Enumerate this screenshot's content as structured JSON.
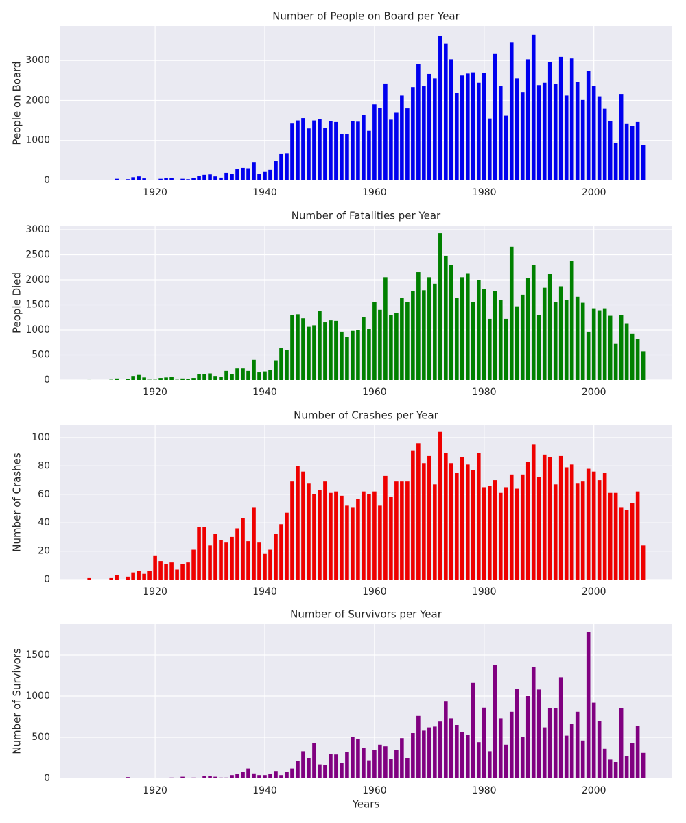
{
  "chart_data": [
    {
      "type": "bar",
      "title": "Number of People on Board per Year",
      "ylabel": "People on Board",
      "color": "#0000ee",
      "grid": true,
      "xlim": [
        1902.6,
        2014.3
      ],
      "xticks": [
        1920,
        1940,
        1960,
        1980,
        2000
      ],
      "ylim": [
        0,
        3860
      ],
      "yticks": [
        0,
        1000,
        2000,
        3000
      ],
      "x": [
        1908,
        1909,
        1910,
        1911,
        1912,
        1913,
        1914,
        1915,
        1916,
        1917,
        1918,
        1919,
        1920,
        1921,
        1922,
        1923,
        1924,
        1925,
        1926,
        1927,
        1928,
        1929,
        1930,
        1931,
        1932,
        1933,
        1934,
        1935,
        1936,
        1937,
        1938,
        1939,
        1940,
        1941,
        1942,
        1943,
        1944,
        1945,
        1946,
        1947,
        1948,
        1949,
        1950,
        1951,
        1952,
        1953,
        1954,
        1955,
        1956,
        1957,
        1958,
        1959,
        1960,
        1961,
        1962,
        1963,
        1964,
        1965,
        1966,
        1967,
        1968,
        1969,
        1970,
        1971,
        1972,
        1973,
        1974,
        1975,
        1976,
        1977,
        1978,
        1979,
        1980,
        1981,
        1982,
        1983,
        1984,
        1985,
        1986,
        1987,
        1988,
        1989,
        1990,
        1991,
        1992,
        1993,
        1994,
        1995,
        1996,
        1997,
        1998,
        1999,
        2000,
        2001,
        2002,
        2003,
        2004,
        2005,
        2006,
        2007,
        2008,
        2009
      ],
      "values": [
        1,
        0,
        0,
        0,
        5,
        40,
        0,
        30,
        80,
        100,
        50,
        10,
        10,
        40,
        60,
        60,
        10,
        40,
        30,
        60,
        120,
        140,
        150,
        100,
        70,
        190,
        160,
        280,
        310,
        300,
        460,
        170,
        210,
        260,
        480,
        670,
        680,
        1420,
        1500,
        1560,
        1300,
        1500,
        1540,
        1320,
        1490,
        1460,
        1150,
        1160,
        1480,
        1470,
        1630,
        1240,
        1900,
        1810,
        2420,
        1520,
        1690,
        2120,
        1800,
        2330,
        2900,
        2350,
        2660,
        2550,
        3620,
        3420,
        3030,
        2180,
        2620,
        2670,
        2700,
        2440,
        2680,
        1550,
        3160,
        2350,
        1620,
        3460,
        2550,
        2210,
        3030,
        3640,
        2380,
        2440,
        2960,
        2410,
        3090,
        2120,
        3050,
        2460,
        2010,
        2730,
        2360,
        2100,
        1790,
        1490,
        930,
        2160,
        1410,
        1370,
        1460,
        880
      ]
    },
    {
      "type": "bar",
      "title": "Number of Fatalities per Year",
      "ylabel": "People Died",
      "color": "#008000",
      "grid": true,
      "xlim": [
        1902.6,
        2014.3
      ],
      "xticks": [
        1920,
        1940,
        1960,
        1980,
        2000
      ],
      "ylim": [
        0,
        3082
      ],
      "yticks": [
        0,
        500,
        1000,
        1500,
        2000,
        2500,
        3000
      ],
      "x": [
        1908,
        1909,
        1910,
        1911,
        1912,
        1913,
        1914,
        1915,
        1916,
        1917,
        1918,
        1919,
        1920,
        1921,
        1922,
        1923,
        1924,
        1925,
        1926,
        1927,
        1928,
        1929,
        1930,
        1931,
        1932,
        1933,
        1934,
        1935,
        1936,
        1937,
        1938,
        1939,
        1940,
        1941,
        1942,
        1943,
        1944,
        1945,
        1946,
        1947,
        1948,
        1949,
        1950,
        1951,
        1952,
        1953,
        1954,
        1955,
        1956,
        1957,
        1958,
        1959,
        1960,
        1961,
        1962,
        1963,
        1964,
        1965,
        1966,
        1967,
        1968,
        1969,
        1970,
        1971,
        1972,
        1973,
        1974,
        1975,
        1976,
        1977,
        1978,
        1979,
        1980,
        1981,
        1982,
        1983,
        1984,
        1985,
        1986,
        1987,
        1988,
        1989,
        1990,
        1991,
        1992,
        1993,
        1994,
        1995,
        1996,
        1997,
        1998,
        1999,
        2000,
        2001,
        2002,
        2003,
        2004,
        2005,
        2006,
        2007,
        2008,
        2009
      ],
      "values": [
        1,
        0,
        0,
        0,
        5,
        30,
        0,
        15,
        80,
        100,
        50,
        5,
        5,
        40,
        50,
        60,
        5,
        30,
        25,
        40,
        120,
        110,
        130,
        80,
        60,
        180,
        120,
        230,
        230,
        180,
        400,
        150,
        170,
        200,
        390,
        630,
        590,
        1300,
        1310,
        1230,
        1060,
        1090,
        1370,
        1150,
        1190,
        1180,
        960,
        850,
        990,
        1000,
        1260,
        1020,
        1560,
        1400,
        2050,
        1290,
        1340,
        1630,
        1550,
        1780,
        2150,
        1790,
        2050,
        1920,
        2930,
        2480,
        2300,
        1630,
        2050,
        2130,
        1550,
        2000,
        1820,
        1220,
        1780,
        1600,
        1220,
        2660,
        1470,
        1700,
        2030,
        2290,
        1300,
        1840,
        2110,
        1560,
        1870,
        1590,
        2380,
        1660,
        1540,
        960,
        1430,
        1390,
        1430,
        1280,
        730,
        1300,
        1130,
        920,
        810,
        570
      ]
    },
    {
      "type": "bar",
      "title": "Number of Crashes per Year",
      "ylabel": "Number of Crashes",
      "color": "#ee0000",
      "grid": true,
      "xlim": [
        1902.6,
        2014.3
      ],
      "xticks": [
        1920,
        1940,
        1960,
        1980,
        2000
      ],
      "ylim": [
        0,
        108.7
      ],
      "yticks": [
        0,
        20,
        40,
        60,
        80,
        100
      ],
      "x": [
        1908,
        1909,
        1910,
        1911,
        1912,
        1913,
        1914,
        1915,
        1916,
        1917,
        1918,
        1919,
        1920,
        1921,
        1922,
        1923,
        1924,
        1925,
        1926,
        1927,
        1928,
        1929,
        1930,
        1931,
        1932,
        1933,
        1934,
        1935,
        1936,
        1937,
        1938,
        1939,
        1940,
        1941,
        1942,
        1943,
        1944,
        1945,
        1946,
        1947,
        1948,
        1949,
        1950,
        1951,
        1952,
        1953,
        1954,
        1955,
        1956,
        1957,
        1958,
        1959,
        1960,
        1961,
        1962,
        1963,
        1964,
        1965,
        1966,
        1967,
        1968,
        1969,
        1970,
        1971,
        1972,
        1973,
        1974,
        1975,
        1976,
        1977,
        1978,
        1979,
        1980,
        1981,
        1982,
        1983,
        1984,
        1985,
        1986,
        1987,
        1988,
        1989,
        1990,
        1991,
        1992,
        1993,
        1994,
        1995,
        1996,
        1997,
        1998,
        1999,
        2000,
        2001,
        2002,
        2003,
        2004,
        2005,
        2006,
        2007,
        2008,
        2009
      ],
      "values": [
        1,
        0,
        0,
        0,
        1,
        3,
        0,
        2,
        5,
        6,
        4,
        6,
        17,
        13,
        11,
        12,
        7,
        11,
        12,
        21,
        37,
        37,
        24,
        32,
        28,
        26,
        30,
        36,
        43,
        27,
        51,
        26,
        18,
        21,
        32,
        39,
        47,
        69,
        80,
        76,
        68,
        60,
        63,
        69,
        61,
        62,
        59,
        52,
        51,
        57,
        62,
        60,
        62,
        52,
        73,
        58,
        69,
        69,
        69,
        91,
        96,
        82,
        87,
        67,
        104,
        89,
        82,
        75,
        86,
        81,
        77,
        89,
        65,
        66,
        70,
        61,
        65,
        74,
        64,
        74,
        83,
        95,
        72,
        88,
        86,
        67,
        87,
        79,
        81,
        68,
        69,
        78,
        76,
        70,
        75,
        61,
        61,
        51,
        49,
        54,
        62,
        24
      ]
    },
    {
      "type": "bar",
      "title": "Number of Survivors per Year",
      "ylabel": "Number of Survivors",
      "xlabel": "Years",
      "color": "#800080",
      "grid": true,
      "xlim": [
        1902.6,
        2014.3
      ],
      "xticks": [
        1920,
        1940,
        1960,
        1980,
        2000
      ],
      "ylim": [
        0,
        1875
      ],
      "yticks": [
        0,
        500,
        1000,
        1500
      ],
      "x": [
        1908,
        1909,
        1910,
        1911,
        1912,
        1913,
        1914,
        1915,
        1916,
        1917,
        1918,
        1919,
        1920,
        1921,
        1922,
        1923,
        1924,
        1925,
        1926,
        1927,
        1928,
        1929,
        1930,
        1931,
        1932,
        1933,
        1934,
        1935,
        1936,
        1937,
        1938,
        1939,
        1940,
        1941,
        1942,
        1943,
        1944,
        1945,
        1946,
        1947,
        1948,
        1949,
        1950,
        1951,
        1952,
        1953,
        1954,
        1955,
        1956,
        1957,
        1958,
        1959,
        1960,
        1961,
        1962,
        1963,
        1964,
        1965,
        1966,
        1967,
        1968,
        1969,
        1970,
        1971,
        1972,
        1973,
        1974,
        1975,
        1976,
        1977,
        1978,
        1979,
        1980,
        1981,
        1982,
        1983,
        1984,
        1985,
        1986,
        1987,
        1988,
        1989,
        1990,
        1991,
        1992,
        1993,
        1994,
        1995,
        1996,
        1997,
        1998,
        1999,
        2000,
        2001,
        2002,
        2003,
        2004,
        2005,
        2006,
        2007,
        2008,
        2009
      ],
      "values": [
        0,
        0,
        0,
        0,
        0,
        0,
        0,
        15,
        0,
        0,
        0,
        0,
        0,
        5,
        5,
        10,
        0,
        20,
        0,
        10,
        5,
        30,
        30,
        20,
        10,
        10,
        40,
        50,
        80,
        120,
        60,
        40,
        40,
        50,
        90,
        40,
        80,
        120,
        210,
        330,
        250,
        430,
        170,
        160,
        300,
        290,
        190,
        320,
        500,
        480,
        370,
        220,
        350,
        410,
        390,
        240,
        350,
        490,
        250,
        550,
        760,
        580,
        620,
        630,
        690,
        940,
        730,
        650,
        560,
        530,
        1160,
        440,
        860,
        330,
        1380,
        730,
        410,
        810,
        1090,
        500,
        1000,
        1350,
        1080,
        620,
        850,
        850,
        1230,
        520,
        660,
        810,
        460,
        1780,
        920,
        700,
        360,
        230,
        200,
        850,
        270,
        430,
        640,
        310
      ]
    }
  ]
}
